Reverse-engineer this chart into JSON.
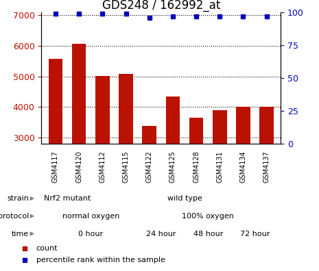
{
  "title": "GDS248 / 162992_at",
  "samples": [
    "GSM4117",
    "GSM4120",
    "GSM4112",
    "GSM4115",
    "GSM4122",
    "GSM4125",
    "GSM4128",
    "GSM4131",
    "GSM4134",
    "GSM4137"
  ],
  "counts": [
    5580,
    6060,
    5020,
    5070,
    3370,
    4340,
    3640,
    3890,
    4010,
    4010
  ],
  "percentiles": [
    99,
    99,
    99,
    99,
    96,
    97,
    97,
    97,
    97,
    97
  ],
  "ylim_left": [
    2800,
    7100
  ],
  "ylim_right": [
    0,
    100
  ],
  "yticks_left": [
    3000,
    4000,
    5000,
    6000,
    7000
  ],
  "yticks_right": [
    0,
    25,
    50,
    75,
    100
  ],
  "bar_color": "#bb1100",
  "dot_color": "#0000bb",
  "bg_color": "#ffffff",
  "xtick_bg": "#cccccc",
  "strain_labels": [
    {
      "text": "Nrf2 mutant",
      "start": 0,
      "end": 2,
      "color": "#99dd88"
    },
    {
      "text": "wild type",
      "start": 2,
      "end": 10,
      "color": "#55cc55"
    }
  ],
  "protocol_labels": [
    {
      "text": "normal oxygen",
      "start": 0,
      "end": 4,
      "color": "#aaaaee"
    },
    {
      "text": "100% oxygen",
      "start": 4,
      "end": 10,
      "color": "#8888cc"
    }
  ],
  "time_labels": [
    {
      "text": "0 hour",
      "start": 0,
      "end": 4,
      "color": "#ffdddd"
    },
    {
      "text": "24 hour",
      "start": 4,
      "end": 6,
      "color": "#ffbbbb"
    },
    {
      "text": "48 hour",
      "start": 6,
      "end": 8,
      "color": "#ffaaaa"
    },
    {
      "text": "72 hour",
      "start": 8,
      "end": 10,
      "color": "#cc8888"
    }
  ],
  "row_labels": [
    "strain",
    "protocol",
    "time"
  ],
  "legend_count_color": "#bb1100",
  "legend_pct_color": "#0000bb",
  "title_fontsize": 12,
  "tick_fontsize": 9,
  "annot_fontsize": 8,
  "legend_fontsize": 8
}
